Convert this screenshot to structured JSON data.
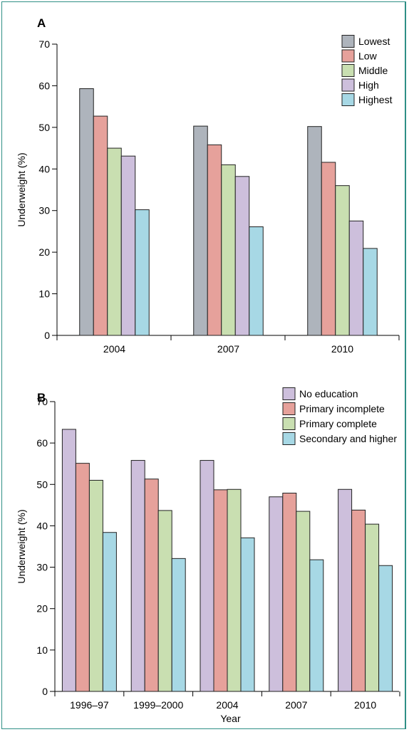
{
  "chart_data": [
    {
      "panel_label": "A",
      "type": "bar",
      "categories": [
        "2004",
        "2007",
        "2010"
      ],
      "series": [
        {
          "name": "Lowest",
          "color": "#aeb4bc",
          "values": [
            59.3,
            50.3,
            50.2
          ]
        },
        {
          "name": "Low",
          "color": "#e6a19b",
          "values": [
            52.7,
            45.8,
            41.6
          ]
        },
        {
          "name": "Middle",
          "color": "#c9dfb1",
          "values": [
            45.0,
            41.0,
            36.0
          ]
        },
        {
          "name": "High",
          "color": "#cdbfdc",
          "values": [
            43.1,
            38.2,
            27.5
          ]
        },
        {
          "name": "Highest",
          "color": "#a7d8e5",
          "values": [
            30.2,
            26.1,
            20.9
          ]
        }
      ],
      "ylabel": "Underweight (%)",
      "xlabel": "",
      "ylim": [
        0,
        70
      ],
      "yticks": [
        0,
        10,
        20,
        30,
        40,
        50,
        60,
        70
      ],
      "legend": "top-right",
      "grid": false
    },
    {
      "panel_label": "B",
      "type": "bar",
      "categories": [
        "1996–97",
        "1999–2000",
        "2004",
        "2007",
        "2010"
      ],
      "series": [
        {
          "name": "No education",
          "color": "#cdbfdc",
          "values": [
            63.3,
            55.8,
            55.8,
            47.0,
            48.8
          ]
        },
        {
          "name": "Primary incomplete",
          "color": "#e6a19b",
          "values": [
            55.1,
            51.3,
            48.7,
            47.9,
            43.8
          ]
        },
        {
          "name": "Primary complete",
          "color": "#c9dfb1",
          "values": [
            51.0,
            43.7,
            48.8,
            43.5,
            40.4
          ]
        },
        {
          "name": "Secondary and higher",
          "color": "#a7d8e5",
          "values": [
            38.4,
            32.1,
            37.1,
            31.8,
            30.4
          ]
        }
      ],
      "ylabel": "Underweight (%)",
      "xlabel": "Year",
      "ylim": [
        0,
        70
      ],
      "yticks": [
        0,
        10,
        20,
        30,
        40,
        50,
        60,
        70
      ],
      "legend": "top-right",
      "grid": false
    }
  ]
}
